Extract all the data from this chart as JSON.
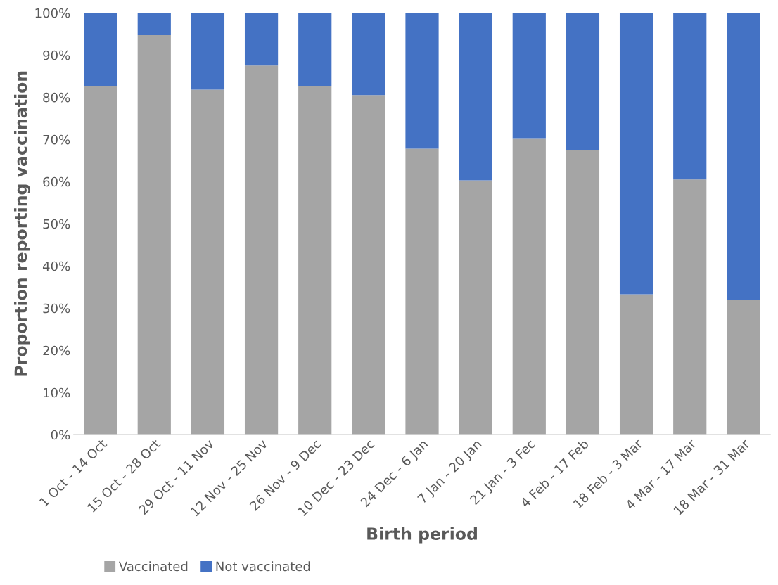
{
  "chart_data": {
    "type": "bar",
    "stacked": true,
    "xlabel": "Birth period",
    "ylabel": "Proportion reporting vaccination",
    "categories": [
      "1 Oct - 14 Oct",
      "15 Oct - 28 Oct",
      "29 Oct - 11 Nov",
      "12 Nov - 25 Nov",
      "26 Nov - 9 Dec",
      "10 Dec - 23 Dec",
      "24 Dec - 6 Jan",
      "7 Jan - 20 Jan",
      "21 Jan - 3 Fec",
      "4 Feb - 17 Feb",
      "18 Feb - 3 Mar",
      "4 Mar - 17 Mar",
      "18 Mar - 31 Mar"
    ],
    "series": [
      {
        "name": "Vaccinated",
        "color": "#a5a5a5",
        "values": [
          82.7,
          94.7,
          81.8,
          87.5,
          82.7,
          80.5,
          67.8,
          60.3,
          70.3,
          67.5,
          33.3,
          60.5,
          32.0
        ]
      },
      {
        "name": "Not vaccinated",
        "color": "#4472c4",
        "values": [
          17.3,
          5.3,
          18.2,
          12.5,
          17.3,
          19.5,
          32.2,
          39.7,
          29.7,
          32.5,
          66.7,
          39.5,
          68.0
        ]
      }
    ],
    "ylim": [
      0,
      100
    ],
    "yticks": [
      {
        "value": 0,
        "label": "0%"
      },
      {
        "value": 10,
        "label": "10%"
      },
      {
        "value": 20,
        "label": "20%"
      },
      {
        "value": 30,
        "label": "30%"
      },
      {
        "value": 40,
        "label": "40%"
      },
      {
        "value": 50,
        "label": "50%"
      },
      {
        "value": 60,
        "label": "60%"
      },
      {
        "value": 70,
        "label": "70%"
      },
      {
        "value": 80,
        "label": "80%"
      },
      {
        "value": 90,
        "label": "90%"
      },
      {
        "value": 100,
        "label": "100%"
      }
    ],
    "grid": false,
    "legend": "bottom"
  }
}
